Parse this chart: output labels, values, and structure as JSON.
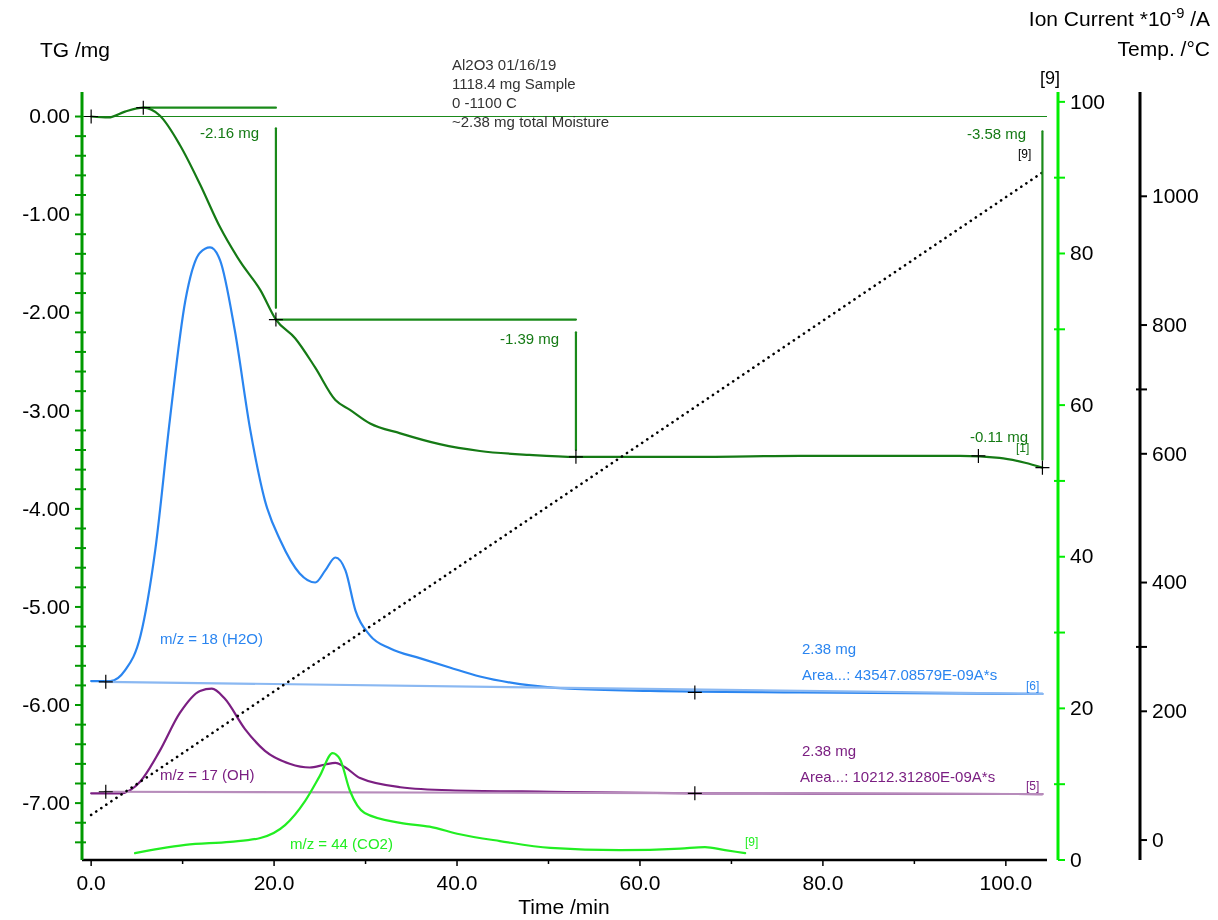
{
  "chart_data": {
    "type": "line",
    "xlabel": "Time /min",
    "ylabel": "TG /mg",
    "y2label": "Ion Current *10$^{-9}$ /A",
    "y3label": "Temp. /°C",
    "xlim": [
      -1,
      104.5
    ],
    "xticks": [
      {
        "value": 0,
        "label": "0.0"
      },
      {
        "value": 10,
        "label": null
      },
      {
        "value": 20,
        "label": "20.0"
      },
      {
        "value": 30,
        "label": null
      },
      {
        "value": 40,
        "label": "40.0"
      },
      {
        "value": 50,
        "label": null
      },
      {
        "value": 60,
        "label": "60.0"
      },
      {
        "value": 70,
        "label": null
      },
      {
        "value": 80,
        "label": "80.0"
      },
      {
        "value": 90,
        "label": null
      },
      {
        "value": 100,
        "label": "100.0"
      }
    ],
    "ylim": [
      -7.58,
      0.25
    ],
    "yticks": [
      {
        "value": 0,
        "label": "0.00"
      },
      {
        "value": -0.2,
        "label": null
      },
      {
        "value": -0.4,
        "label": null
      },
      {
        "value": -0.6,
        "label": null
      },
      {
        "value": -0.8,
        "label": null
      },
      {
        "value": -1,
        "label": "-1.00"
      },
      {
        "value": -1.2,
        "label": null
      },
      {
        "value": -1.4,
        "label": null
      },
      {
        "value": -1.6,
        "label": null
      },
      {
        "value": -1.8,
        "label": null
      },
      {
        "value": -2,
        "label": "-2.00"
      },
      {
        "value": -2.2,
        "label": null
      },
      {
        "value": -2.4,
        "label": null
      },
      {
        "value": -2.6,
        "label": null
      },
      {
        "value": -2.8,
        "label": null
      },
      {
        "value": -3,
        "label": "-3.00"
      },
      {
        "value": -3.2,
        "label": null
      },
      {
        "value": -3.4,
        "label": null
      },
      {
        "value": -3.6,
        "label": null
      },
      {
        "value": -3.8,
        "label": null
      },
      {
        "value": -4,
        "label": "-4.00"
      },
      {
        "value": -4.2,
        "label": null
      },
      {
        "value": -4.4,
        "label": null
      },
      {
        "value": -4.6,
        "label": null
      },
      {
        "value": -4.8,
        "label": null
      },
      {
        "value": -5,
        "label": "-5.00"
      },
      {
        "value": -5.2,
        "label": null
      },
      {
        "value": -5.4,
        "label": null
      },
      {
        "value": -5.6,
        "label": null
      },
      {
        "value": -5.8,
        "label": null
      },
      {
        "value": -6,
        "label": "-6.00"
      },
      {
        "value": -6.2,
        "label": null
      },
      {
        "value": -6.4,
        "label": null
      },
      {
        "value": -6.6,
        "label": null
      },
      {
        "value": -6.8,
        "label": null
      },
      {
        "value": -7,
        "label": "-7.00"
      },
      {
        "value": -7.2,
        "label": null
      },
      {
        "value": -7.4,
        "label": null
      }
    ],
    "y2lim": [
      0,
      101.3
    ],
    "y2ticks": [
      0,
      {
        "value": 10,
        "label": null
      },
      20,
      {
        "value": 30,
        "label": null
      },
      40,
      {
        "value": 50,
        "label": null
      },
      60,
      {
        "value": 70,
        "label": null
      },
      80,
      {
        "value": 90,
        "label": null
      },
      100
    ],
    "y3lim": [
      -31,
      1162
    ],
    "y3ticks": [
      0,
      200,
      {
        "value": 300,
        "label": null
      },
      400,
      600,
      {
        "value": 700,
        "label": null
      },
      800,
      1000
    ],
    "grid": false,
    "ref_lines": [
      {
        "axis": "y",
        "value": 0,
        "color": "#1a8a1a"
      }
    ],
    "series": [
      {
        "color": "#157a15",
        "x": [
          0,
          1.9,
          3.7,
          5.7,
          7.5,
          9.7,
          11.9,
          14.1,
          16.3,
          18.5,
          20.2,
          22.3,
          24.5,
          26.7,
          28.3,
          30.5,
          33.8,
          38.1,
          42.5,
          47.9,
          53,
          66.6,
          77.5,
          95,
          99.3,
          102.1,
          104
        ],
        "values": [
          0,
          -0.01,
          0.05,
          0.09,
          0.01,
          -0.29,
          -0.69,
          -1.13,
          -1.48,
          -1.77,
          -2.07,
          -2.26,
          -2.56,
          -2.89,
          -2.99,
          -3.13,
          -3.23,
          -3.34,
          -3.41,
          -3.45,
          -3.47,
          -3.47,
          -3.46,
          -3.46,
          -3.48,
          -3.53,
          -3.58
        ]
      },
      {
        "color": "#2a85f0",
        "axis": "y2",
        "x": [
          0,
          2.1,
          3.7,
          5.4,
          7,
          8.6,
          10.3,
          11.9,
          13,
          14.1,
          15.7,
          17.4,
          19,
          20.7,
          22.8,
          24.5,
          25.6,
          26.7,
          27.8,
          28.9,
          30.5,
          32.7,
          36,
          39.2,
          42.5,
          46.9,
          52.3,
          61.1,
          77.5,
          104
        ],
        "values": [
          23.6,
          23.6,
          25,
          29.6,
          40.8,
          58,
          73.8,
          80.1,
          80.8,
          79.1,
          69.9,
          56.7,
          47.4,
          42.1,
          37.8,
          36.6,
          38.2,
          39.9,
          38.2,
          32.9,
          29.6,
          27.9,
          26.6,
          25.4,
          24.2,
          23.2,
          22.6,
          22.3,
          22.1,
          21.9
        ]
      },
      {
        "color": "#8ab8f2",
        "axis": "y2",
        "x": [
          1.5,
          104
        ],
        "values": [
          23.5,
          21.9
        ]
      },
      {
        "color": "#7b1f82",
        "axis": "y2",
        "x": [
          0,
          3.2,
          5.4,
          7.5,
          9.7,
          11.9,
          13.2,
          14.6,
          16.8,
          19,
          21.7,
          23.9,
          25.6,
          26.7,
          27.8,
          29.4,
          33.8,
          39.2,
          50.2,
          66.6,
          104
        ],
        "values": [
          8.8,
          8.8,
          10.4,
          14.4,
          19.4,
          22.3,
          22.6,
          21.3,
          17.3,
          14.4,
          12.7,
          12.2,
          12.6,
          12.8,
          12.2,
          10.8,
          9.6,
          9.2,
          9,
          8.8,
          8.7
        ]
      },
      {
        "color": "#b78cbb",
        "axis": "y2",
        "x": [
          1.5,
          104
        ],
        "values": [
          9,
          8.7
        ]
      },
      {
        "color": "#22ee22",
        "axis": "y2",
        "x": [
          4.8,
          7.5,
          10.3,
          15.2,
          18.5,
          21.2,
          23.4,
          25,
          26.4,
          27.2,
          28.3,
          29.9,
          33.8,
          37,
          40.3,
          44.7,
          50.2,
          57.8,
          64.4,
          67.1,
          69.3,
          71.5
        ],
        "values": [
          0.9,
          1.5,
          2,
          2.4,
          2.9,
          4.6,
          7.8,
          11.1,
          14.1,
          13.3,
          9.1,
          6.2,
          4.9,
          4.4,
          3.4,
          2.5,
          1.6,
          1.3,
          1.5,
          1.7,
          1.3,
          0.9
        ]
      },
      {
        "color": "#000000",
        "axis": "y3",
        "line_style": "dotted",
        "x": [
          0,
          104
        ],
        "values": [
          39,
          1037
        ]
      },
      {
        "color": "#1a8a1a",
        "x": [
          5.7,
          20.2
        ],
        "values": [
          0.09,
          0.09
        ]
      },
      {
        "color": "#1a8a1a",
        "x": [
          20.2,
          53
        ],
        "values": [
          -2.07,
          -2.07
        ]
      },
      {
        "color": "#1a8a1a",
        "x": [
          20.2,
          20.2
        ],
        "values": [
          -0.12,
          -1.95
        ]
      },
      {
        "color": "#1a8a1a",
        "x": [
          53,
          53
        ],
        "values": [
          -2.2,
          -3.4
        ]
      },
      {
        "color": "#1a8a1a",
        "x": [
          104,
          104
        ],
        "values": [
          -0.15,
          -3.5
        ]
      },
      {
        "type": "scatter",
        "marker": "cross",
        "color": "#000000",
        "x": [
          0,
          5.7,
          20.2,
          53,
          97,
          104
        ],
        "values": [
          0,
          0.09,
          -2.07,
          -3.47,
          -3.46,
          -3.58
        ]
      },
      {
        "type": "scatter",
        "marker": "cross",
        "color": "#000000",
        "axis": "y2",
        "x": [
          1.6,
          66,
          1.6,
          66
        ],
        "values": [
          23.5,
          22.1,
          9,
          8.8
        ]
      }
    ],
    "annotations": [
      "Al2O3 01/16/19",
      "1118.4 mg Sample",
      "0 -1100 C",
      "~2.38 mg total Moisture",
      "[9]",
      "-2.16 mg",
      "-1.39 mg",
      "-3.58 mg",
      "[9]",
      "-0.11 mg",
      "[1]",
      "m/z = 18 (H2O)",
      "2.38 mg",
      "Area...: 43547.08579E-09A*s",
      "[6]",
      "m/z = 17 (OH)",
      "2.38 mg",
      "Area...: 10212.31280E-09A*s",
      "[5]",
      "m/z = 44 (CO2)",
      "[9]"
    ]
  }
}
